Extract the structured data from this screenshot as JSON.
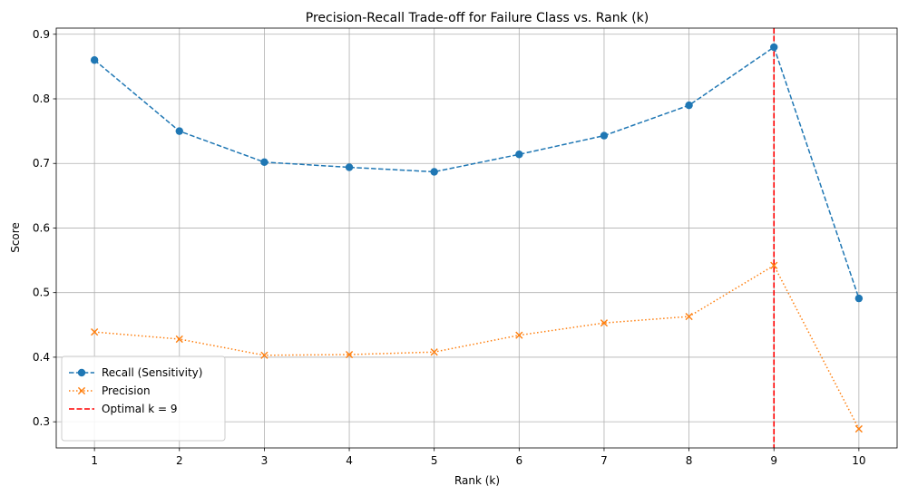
{
  "chart_data": {
    "type": "line",
    "title": "Precision-Recall Trade-off for Failure Class vs. Rank (k)",
    "xlabel": "Rank (k)",
    "ylabel": "Score",
    "x": [
      1,
      2,
      3,
      4,
      5,
      6,
      7,
      8,
      9,
      10
    ],
    "xlim": [
      0.55,
      10.45
    ],
    "ylim": [
      0.2595,
      0.9095
    ],
    "yticks": [
      0.3,
      0.4,
      0.5,
      0.6,
      0.7,
      0.8,
      0.9
    ],
    "grid": true,
    "legend_position": "lower-left",
    "series": [
      {
        "name": "Recall (Sensitivity)",
        "color": "#1f77b4",
        "linestyle": "dashed",
        "marker": "circle",
        "values": [
          0.86,
          0.75,
          0.702,
          0.694,
          0.687,
          0.714,
          0.743,
          0.79,
          0.88,
          0.491
        ]
      },
      {
        "name": "Precision",
        "color": "#ff7f0e",
        "linestyle": "dotted",
        "marker": "x",
        "values": [
          0.439,
          0.428,
          0.403,
          0.404,
          0.408,
          0.434,
          0.453,
          0.463,
          0.542,
          0.289
        ]
      }
    ],
    "reference_line": {
      "orientation": "vertical",
      "x": 9,
      "color": "#ff0000",
      "linestyle": "dashed",
      "label": "Optimal k = 9"
    }
  }
}
